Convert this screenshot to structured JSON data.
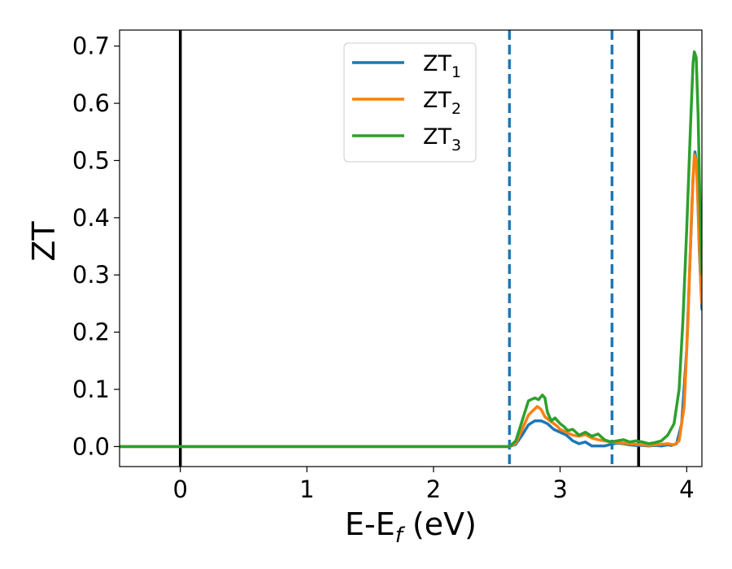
{
  "chart_data": {
    "type": "line",
    "title": "",
    "xlabel": "E-E",
    "xlabel_sub": "f",
    "xlabel_unit": " (eV)",
    "ylabel": "ZT",
    "xlim": [
      -0.48,
      4.12
    ],
    "ylim": [
      -0.035,
      0.728
    ],
    "xticks": [
      0,
      1,
      2,
      3,
      4
    ],
    "xtick_labels": [
      "0",
      "1",
      "2",
      "3",
      "4"
    ],
    "yticks": [
      0.0,
      0.1,
      0.2,
      0.3,
      0.4,
      0.5,
      0.6,
      0.7
    ],
    "ytick_labels": [
      "0.0",
      "0.1",
      "0.2",
      "0.3",
      "0.4",
      "0.5",
      "0.6",
      "0.7"
    ],
    "grid": false,
    "legend_position": "top-center",
    "vertical_lines": [
      {
        "x": 0.0,
        "style": "solid",
        "color": "#000000"
      },
      {
        "x": 3.62,
        "style": "solid",
        "color": "#000000"
      },
      {
        "x": 2.6,
        "style": "dashed",
        "color": "#1f77b4"
      },
      {
        "x": 3.41,
        "style": "dashed",
        "color": "#1f77b4"
      }
    ],
    "series": [
      {
        "name": "ZT",
        "name_sub": "1",
        "color": "#1f77b4",
        "points": [
          [
            -0.48,
            0
          ],
          [
            2.6,
            0
          ],
          [
            2.65,
            0.004
          ],
          [
            2.7,
            0.02
          ],
          [
            2.75,
            0.038
          ],
          [
            2.8,
            0.045
          ],
          [
            2.85,
            0.045
          ],
          [
            2.9,
            0.04
          ],
          [
            2.95,
            0.03
          ],
          [
            3.0,
            0.025
          ],
          [
            3.05,
            0.02
          ],
          [
            3.1,
            0.01
          ],
          [
            3.15,
            0.005
          ],
          [
            3.2,
            0.008
          ],
          [
            3.25,
            0.001
          ],
          [
            3.3,
            0.001
          ],
          [
            3.35,
            0.001
          ],
          [
            3.4,
            0.004
          ],
          [
            3.45,
            0.006
          ],
          [
            3.5,
            0.005
          ],
          [
            3.55,
            0.003
          ],
          [
            3.6,
            0.002
          ],
          [
            3.65,
            0.002
          ],
          [
            3.7,
            0.001
          ],
          [
            3.75,
            0.002
          ],
          [
            3.8,
            0.001
          ],
          [
            3.85,
            0.003
          ],
          [
            3.88,
            0.002
          ],
          [
            3.92,
            0.005
          ],
          [
            3.96,
            0.04
          ],
          [
            4.0,
            0.17
          ],
          [
            4.03,
            0.35
          ],
          [
            4.05,
            0.47
          ],
          [
            4.065,
            0.515
          ],
          [
            4.08,
            0.49
          ],
          [
            4.1,
            0.34
          ],
          [
            4.12,
            0.24
          ]
        ]
      },
      {
        "name": "ZT",
        "name_sub": "2",
        "color": "#ff7f0e",
        "points": [
          [
            -0.48,
            0
          ],
          [
            2.6,
            0
          ],
          [
            2.65,
            0.006
          ],
          [
            2.7,
            0.03
          ],
          [
            2.75,
            0.055
          ],
          [
            2.8,
            0.066
          ],
          [
            2.82,
            0.07
          ],
          [
            2.85,
            0.065
          ],
          [
            2.88,
            0.052
          ],
          [
            2.92,
            0.045
          ],
          [
            2.95,
            0.04
          ],
          [
            2.98,
            0.035
          ],
          [
            3.0,
            0.03
          ],
          [
            3.05,
            0.025
          ],
          [
            3.1,
            0.02
          ],
          [
            3.15,
            0.018
          ],
          [
            3.2,
            0.021
          ],
          [
            3.25,
            0.015
          ],
          [
            3.3,
            0.012
          ],
          [
            3.35,
            0.01
          ],
          [
            3.4,
            0.008
          ],
          [
            3.45,
            0.007
          ],
          [
            3.5,
            0.006
          ],
          [
            3.55,
            0.005
          ],
          [
            3.6,
            0.004
          ],
          [
            3.65,
            0.003
          ],
          [
            3.7,
            0.002
          ],
          [
            3.75,
            0.003
          ],
          [
            3.8,
            0.004
          ],
          [
            3.85,
            0.005
          ],
          [
            3.9,
            0.003
          ],
          [
            3.94,
            0.01
          ],
          [
            3.98,
            0.07
          ],
          [
            4.01,
            0.22
          ],
          [
            4.04,
            0.42
          ],
          [
            4.06,
            0.51
          ],
          [
            4.075,
            0.5
          ],
          [
            4.09,
            0.42
          ],
          [
            4.11,
            0.29
          ],
          [
            4.12,
            0.25
          ]
        ]
      },
      {
        "name": "ZT",
        "name_sub": "3",
        "color": "#2ca02c",
        "points": [
          [
            -0.48,
            0
          ],
          [
            2.6,
            0
          ],
          [
            2.65,
            0.01
          ],
          [
            2.7,
            0.045
          ],
          [
            2.75,
            0.08
          ],
          [
            2.8,
            0.085
          ],
          [
            2.83,
            0.082
          ],
          [
            2.86,
            0.09
          ],
          [
            2.88,
            0.085
          ],
          [
            2.9,
            0.06
          ],
          [
            2.93,
            0.045
          ],
          [
            2.96,
            0.05
          ],
          [
            3.0,
            0.04
          ],
          [
            3.03,
            0.035
          ],
          [
            3.06,
            0.028
          ],
          [
            3.1,
            0.03
          ],
          [
            3.15,
            0.02
          ],
          [
            3.2,
            0.025
          ],
          [
            3.25,
            0.018
          ],
          [
            3.3,
            0.022
          ],
          [
            3.35,
            0.012
          ],
          [
            3.4,
            0.008
          ],
          [
            3.45,
            0.01
          ],
          [
            3.5,
            0.012
          ],
          [
            3.55,
            0.008
          ],
          [
            3.6,
            0.01
          ],
          [
            3.65,
            0.008
          ],
          [
            3.7,
            0.005
          ],
          [
            3.75,
            0.007
          ],
          [
            3.8,
            0.01
          ],
          [
            3.85,
            0.02
          ],
          [
            3.9,
            0.04
          ],
          [
            3.94,
            0.1
          ],
          [
            3.97,
            0.22
          ],
          [
            4.0,
            0.38
          ],
          [
            4.03,
            0.56
          ],
          [
            4.05,
            0.67
          ],
          [
            4.06,
            0.69
          ],
          [
            4.075,
            0.68
          ],
          [
            4.09,
            0.58
          ],
          [
            4.1,
            0.47
          ],
          [
            4.12,
            0.3
          ]
        ]
      }
    ]
  }
}
